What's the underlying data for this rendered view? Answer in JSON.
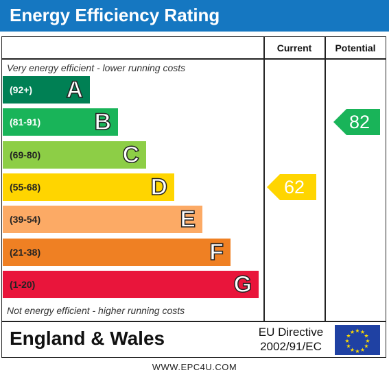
{
  "header": {
    "title": "Energy Efficiency Rating"
  },
  "columns": {
    "current": "Current",
    "potential": "Potential"
  },
  "notes": {
    "top": "Very energy efficient - lower running costs",
    "bottom": "Not energy efficient - higher running costs"
  },
  "chart_data": {
    "type": "bar",
    "title": "Energy Efficiency Rating",
    "bands": [
      {
        "range": "(92+)",
        "letter": "A",
        "color": "#008054",
        "range_color": "#ffffff"
      },
      {
        "range": "(81-91)",
        "letter": "B",
        "color": "#19b459",
        "range_color": "#ffffff"
      },
      {
        "range": "(69-80)",
        "letter": "C",
        "color": "#8dce46",
        "range_color": "#222222"
      },
      {
        "range": "(55-68)",
        "letter": "D",
        "color": "#ffd500",
        "range_color": "#222222"
      },
      {
        "range": "(39-54)",
        "letter": "E",
        "color": "#fcaa65",
        "range_color": "#222222"
      },
      {
        "range": "(21-38)",
        "letter": "F",
        "color": "#ef8023",
        "range_color": "#222222"
      },
      {
        "range": "(1-20)",
        "letter": "G",
        "color": "#e9153b",
        "range_color": "#222222"
      }
    ],
    "current": {
      "value": 62,
      "band": "D",
      "color": "#ffd500"
    },
    "potential": {
      "value": 82,
      "band": "B",
      "color": "#19b459"
    }
  },
  "footer": {
    "region": "England & Wales",
    "directive_line1": "EU Directive",
    "directive_line2": "2002/91/EC",
    "website": "WWW.EPC4U.COM"
  }
}
